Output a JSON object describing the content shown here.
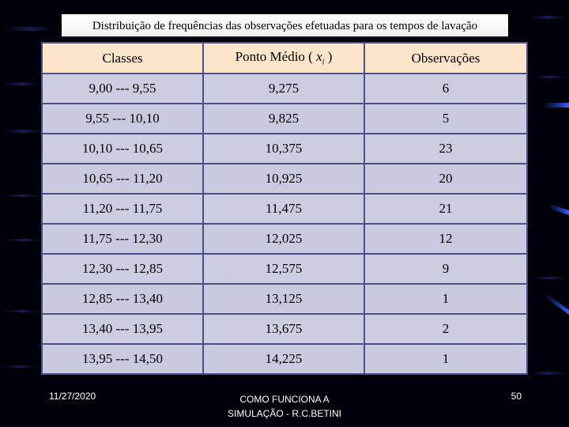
{
  "slide": {
    "title": "Distribuição de frequências das observações efetuadas para os tempos de lavação"
  },
  "table": {
    "headers": {
      "classes": "Classes",
      "midpoint_prefix": "Ponto Médio (",
      "midpoint_var": "x",
      "midpoint_sub": "i",
      "midpoint_suffix": ")",
      "observations": "Observações"
    },
    "rows": [
      {
        "classe": "9,00 --- 9,55",
        "ponto_medio": "9,275",
        "observacoes": "6"
      },
      {
        "classe": "9,55 --- 10,10",
        "ponto_medio": "9,825",
        "observacoes": "5"
      },
      {
        "classe": "10,10 --- 10,65",
        "ponto_medio": "10,375",
        "observacoes": "23"
      },
      {
        "classe": "10,65 --- 11,20",
        "ponto_medio": "10,925",
        "observacoes": "20"
      },
      {
        "classe": "11,20 --- 11,75",
        "ponto_medio": "11,475",
        "observacoes": "21"
      },
      {
        "classe": "11,75 --- 12,30",
        "ponto_medio": "12,025",
        "observacoes": "12"
      },
      {
        "classe": "12,30 --- 12,85",
        "ponto_medio": "12,575",
        "observacoes": "9"
      },
      {
        "classe": "12,85 --- 13,40",
        "ponto_medio": "13,125",
        "observacoes": "1"
      },
      {
        "classe": "13,40 --- 13,95",
        "ponto_medio": "13,675",
        "observacoes": "2"
      },
      {
        "classe": "13,95 --- 14,50",
        "ponto_medio": "14,225",
        "observacoes": "1"
      }
    ]
  },
  "footer": {
    "date": "11/27/2020",
    "center_line1": "COMO FUNCIONA A",
    "center_line2": "SIMULAÇÃO - R.C.BETINI",
    "page_number": "50"
  },
  "colors": {
    "background": "#000008",
    "header_fill": "#fde5cc",
    "row_fill": "#c9c9df",
    "grid_line": "#4c4f86",
    "accent_streak": "#2b4fd6"
  }
}
